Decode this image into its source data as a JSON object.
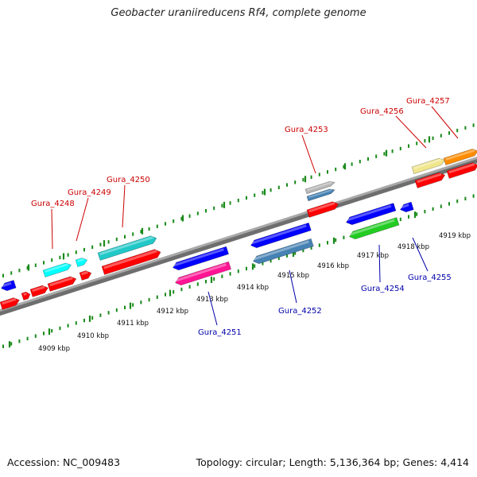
{
  "title": "Geobacter uraniireducens Rf4, complete genome",
  "footer": {
    "accession": "Accession: NC_009483",
    "summary": "Topology: circular; Length: 5,136,364 bp; Genes: 4,414"
  },
  "ticks": [
    "4909 kbp",
    "4910 kbp",
    "4911 kbp",
    "4912 kbp",
    "4913 kbp",
    "4914 kbp",
    "4915 kbp",
    "4916 kbp",
    "4917 kbp",
    "4918 kbp",
    "4919 kbp"
  ],
  "genes_forward": [
    {
      "label": "Gura_4248",
      "color": "#00ffff"
    },
    {
      "label": "Gura_4249",
      "color": "#00ffff"
    },
    {
      "label": "Gura_4250",
      "color": "#20c8c8"
    },
    {
      "label": "Gura_4253",
      "color": "#b8b8b8"
    },
    {
      "label": "Gura_4256",
      "color": "#f0e68c"
    },
    {
      "label": "Gura_4257",
      "color": "#ff8c00"
    }
  ],
  "genes_reverse": [
    {
      "label": "Gura_4251",
      "color": "#ff1493"
    },
    {
      "label": "Gura_4252",
      "color": "#4682b4"
    },
    {
      "label": "Gura_4254",
      "color": "#22cc22"
    },
    {
      "label": "Gura_4255",
      "color": "#0000ff"
    }
  ],
  "colors": {
    "forward_label": "#cc0000",
    "reverse_label": "#0000aa",
    "tick": "#1a8a1a",
    "backbone": "#8a8a8a",
    "red_gene": "#ff0000",
    "blue_gene": "#0000ff"
  }
}
